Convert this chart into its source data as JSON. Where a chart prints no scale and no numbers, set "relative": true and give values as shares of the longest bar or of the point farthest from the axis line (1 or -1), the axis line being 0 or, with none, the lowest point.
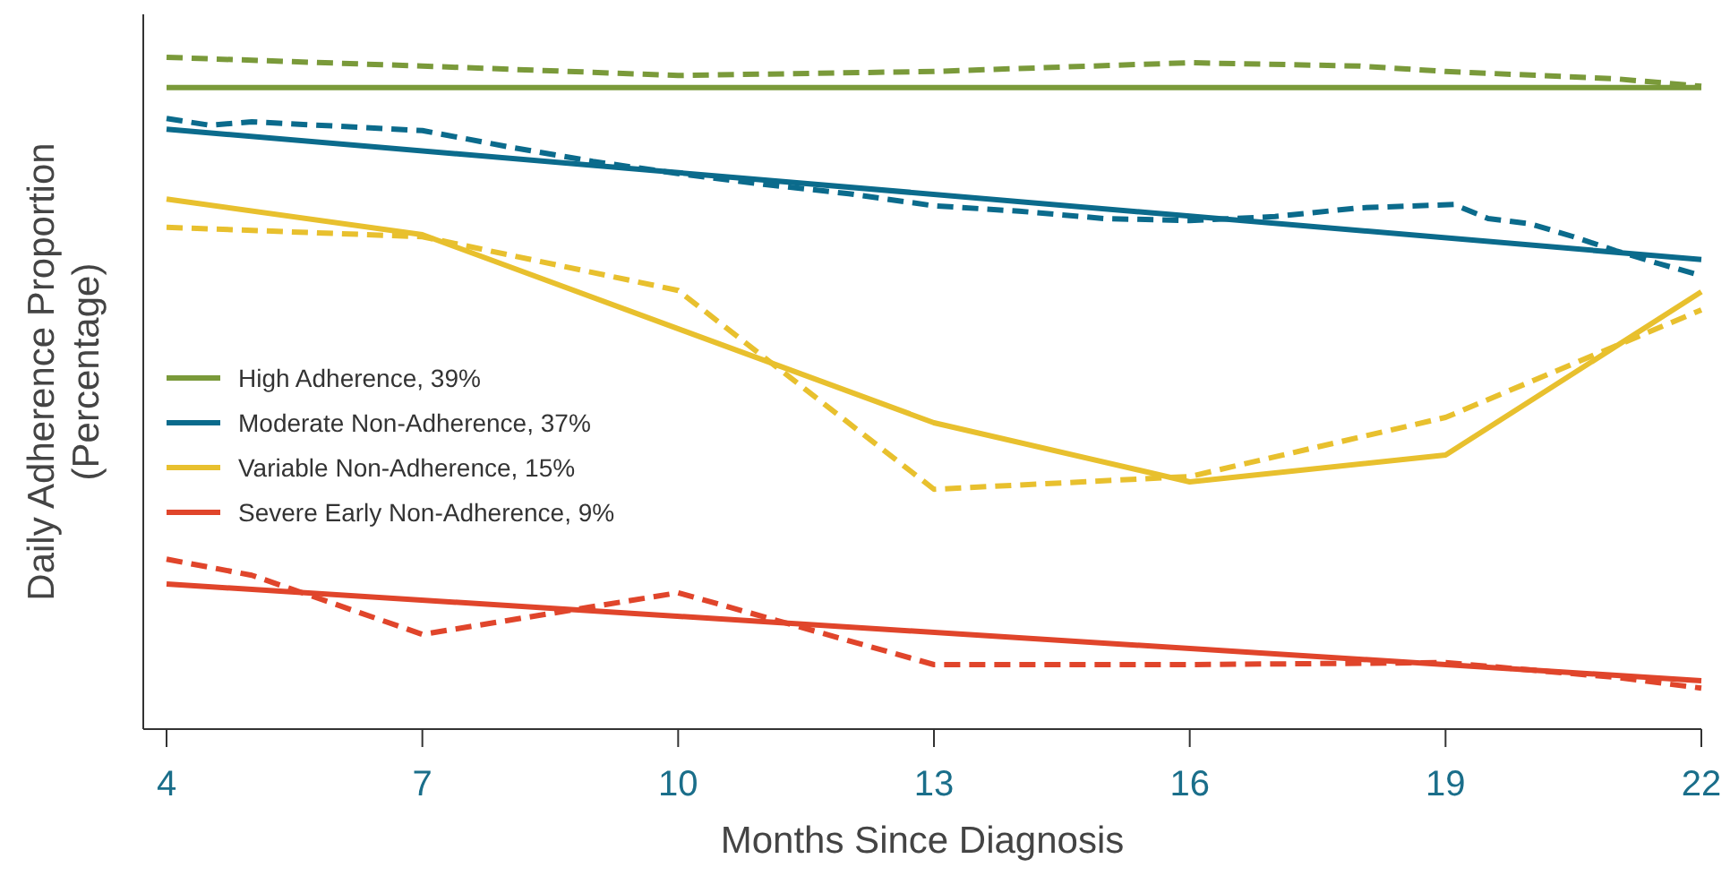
{
  "chart_data": {
    "type": "line",
    "relative": true,
    "xlabel": "Months Since Diagnosis",
    "ylabel": "Daily Adherence Proportion\n(Percentage)",
    "xlim": [
      4,
      22
    ],
    "xticks": [
      4,
      7,
      10,
      13,
      16,
      19,
      22
    ],
    "legend": "left",
    "grid": false,
    "series": [
      {
        "name": "High Adherence, 39%",
        "color": "#7a9a3a",
        "line_style": "solid",
        "x": [
          4,
          22
        ],
        "values": [
          0.955,
          0.955
        ]
      },
      {
        "color": "#7a9a3a",
        "line_style": "dashed",
        "x": [
          4,
          7,
          10,
          13,
          16,
          18,
          19,
          21,
          22
        ],
        "values": [
          1.0,
          0.987,
          0.973,
          0.979,
          0.992,
          0.987,
          0.979,
          0.968,
          0.957
        ]
      },
      {
        "name": "Moderate Non-Adherence, 37%",
        "color": "#0b6b8c",
        "line_style": "solid",
        "x": [
          4,
          22
        ],
        "values": [
          0.893,
          0.699
        ]
      },
      {
        "color": "#0b6b8c",
        "line_style": "dashed",
        "x": [
          4,
          4.5,
          5,
          7,
          8,
          9,
          10,
          11,
          12,
          13,
          14,
          15,
          16,
          17,
          18,
          19.1,
          19.5,
          20,
          20.5,
          21,
          21.5,
          22
        ],
        "values": [
          0.909,
          0.899,
          0.904,
          0.891,
          0.867,
          0.845,
          0.827,
          0.811,
          0.797,
          0.779,
          0.771,
          0.76,
          0.757,
          0.763,
          0.776,
          0.781,
          0.76,
          0.752,
          0.733,
          0.712,
          0.693,
          0.675
        ]
      },
      {
        "name": "Variable Non-Adherence, 15%",
        "color": "#e8c02e",
        "line_style": "solid",
        "x": [
          4,
          7,
          13,
          16,
          19,
          22
        ],
        "values": [
          0.789,
          0.736,
          0.456,
          0.368,
          0.408,
          0.651
        ]
      },
      {
        "color": "#e8c02e",
        "line_style": "dashed",
        "x": [
          4,
          7,
          10,
          13,
          16,
          19,
          22
        ],
        "values": [
          0.747,
          0.733,
          0.653,
          0.357,
          0.376,
          0.464,
          0.624
        ]
      },
      {
        "name": "Severe Early Non-Adherence, 9%",
        "color": "#e0452b",
        "line_style": "solid",
        "x": [
          4,
          22
        ],
        "values": [
          0.216,
          0.072
        ]
      },
      {
        "color": "#e0452b",
        "line_style": "dashed",
        "x": [
          4,
          5,
          7,
          10,
          13,
          16,
          19,
          21,
          22
        ],
        "values": [
          0.253,
          0.229,
          0.141,
          0.203,
          0.096,
          0.096,
          0.099,
          0.077,
          0.061
        ]
      }
    ]
  }
}
